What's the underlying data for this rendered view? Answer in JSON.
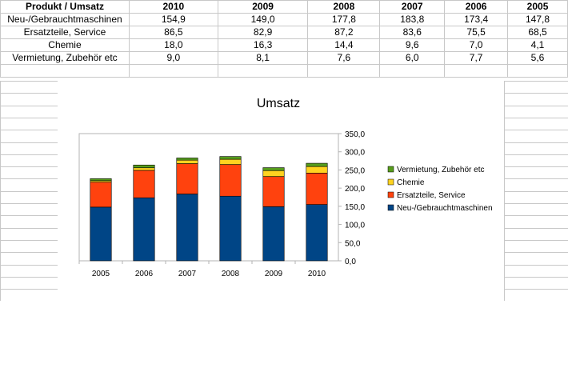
{
  "table": {
    "headers": [
      "Produkt / Umsatz",
      "2010",
      "2009",
      "2008",
      "2007",
      "2006",
      "2005"
    ],
    "rows": [
      [
        "Neu-/Gebrauchtmaschinen",
        "154,9",
        "149,0",
        "177,8",
        "183,8",
        "173,4",
        "147,8"
      ],
      [
        "Ersatzteile, Service",
        "86,5",
        "82,9",
        "87,2",
        "83,6",
        "75,5",
        "68,5"
      ],
      [
        "Chemie",
        "18,0",
        "16,3",
        "14,4",
        "9,6",
        "7,0",
        "4,1"
      ],
      [
        "Vermietung, Zubehör etc",
        "9,0",
        "8,1",
        "7,6",
        "6,0",
        "7,7",
        "5,6"
      ]
    ]
  },
  "chart_data": {
    "type": "bar",
    "stacked": true,
    "title": "Umsatz",
    "categories": [
      "2005",
      "2006",
      "2007",
      "2008",
      "2009",
      "2010"
    ],
    "series": [
      {
        "name": "Neu-/Gebrauchtmaschinen",
        "color": "#004586",
        "values": [
          147.8,
          173.4,
          183.8,
          177.8,
          149.0,
          154.9
        ]
      },
      {
        "name": "Ersatzteile, Service",
        "color": "#ff420e",
        "values": [
          68.5,
          75.5,
          83.6,
          87.2,
          82.9,
          86.5
        ]
      },
      {
        "name": "Chemie",
        "color": "#ffd320",
        "values": [
          4.1,
          7.0,
          9.6,
          14.4,
          16.3,
          18.0
        ]
      },
      {
        "name": "Vermietung, Zubehör etc",
        "color": "#579d1c",
        "values": [
          5.6,
          7.7,
          6.0,
          7.6,
          8.1,
          9.0
        ]
      }
    ],
    "ylim": [
      0,
      350
    ],
    "yticks": [
      "0,0",
      "50,0",
      "100,0",
      "150,0",
      "200,0",
      "250,0",
      "300,0",
      "350,0"
    ],
    "legend_position": "right",
    "legend_order": [
      "Vermietung, Zubehör etc",
      "Chemie",
      "Ersatzteile, Service",
      "Neu-/Gebrauchtmaschinen"
    ]
  }
}
